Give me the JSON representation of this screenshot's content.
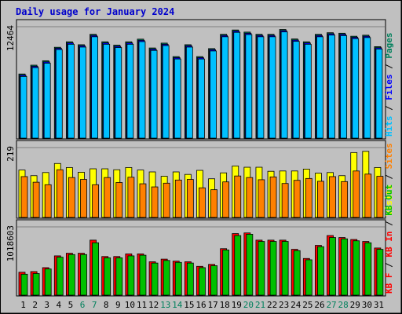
{
  "title": "Daily usage for January 2024",
  "colors": {
    "hits": "#00805c",
    "files": "#0000ff",
    "pages": "#00c0ff",
    "visits": "#ffff00",
    "sites": "#ff8000",
    "kb_in": "#ff0000",
    "kb_out": "#00c000",
    "kb_f": "#ff0000",
    "weekend": "#00805c",
    "weekday": "#000000",
    "title": "#0000cc",
    "bg": "#c0c0c0",
    "plot_bg": "#c0c0c0"
  },
  "chart_data": [
    {
      "type": "bar",
      "panel": "hits-files-pages",
      "ymax_label": "12464",
      "ylim": [
        0,
        12464
      ],
      "right_label": {
        "parts": [
          "Hits",
          " / ",
          "Files",
          " / ",
          "Pages"
        ]
      },
      "categories": [
        "1",
        "2",
        "3",
        "4",
        "5",
        "6",
        "7",
        "8",
        "9",
        "10",
        "11",
        "12",
        "13",
        "14",
        "15",
        "16",
        "17",
        "18",
        "19",
        "20",
        "21",
        "22",
        "23",
        "24",
        "25",
        "26",
        "27",
        "28",
        "29",
        "30",
        "31"
      ],
      "weekend_days": [
        "6",
        "7",
        "13",
        "14",
        "20",
        "21",
        "27",
        "28"
      ],
      "series": [
        {
          "name": "Hits",
          "values": [
            7280,
            8280,
            8780,
            10310,
            10930,
            10600,
            11780,
            10930,
            10550,
            10930,
            11230,
            10230,
            10780,
            9250,
            10600,
            9250,
            10160,
            11780,
            12270,
            12030,
            11780,
            11780,
            12330,
            11250,
            10930,
            11780,
            11960,
            11900,
            11560,
            11680,
            10380
          ]
        },
        {
          "name": "Files",
          "values": [
            7150,
            8150,
            8650,
            10200,
            10800,
            10480,
            11650,
            10800,
            10430,
            10800,
            11100,
            10100,
            10650,
            9130,
            10480,
            9130,
            10040,
            11650,
            12150,
            11900,
            11650,
            11650,
            12200,
            11130,
            10800,
            11650,
            11840,
            11780,
            11440,
            11560,
            10260
          ]
        },
        {
          "name": "Pages",
          "values": [
            7000,
            8000,
            8500,
            10050,
            10650,
            10330,
            11500,
            10650,
            10280,
            10650,
            10950,
            9950,
            10500,
            8980,
            10330,
            8980,
            9890,
            11500,
            12000,
            11750,
            11500,
            11500,
            12050,
            10980,
            10650,
            11500,
            11690,
            11630,
            11290,
            11410,
            10110
          ]
        }
      ]
    },
    {
      "type": "bar",
      "panel": "visits-sites",
      "ymax_label": "219",
      "ylim": [
        0,
        219
      ],
      "right_label": {
        "parts": [
          "Visits",
          " / ",
          "Sites"
        ]
      },
      "categories": [
        "1",
        "2",
        "3",
        "4",
        "5",
        "6",
        "7",
        "8",
        "9",
        "10",
        "11",
        "12",
        "13",
        "14",
        "15",
        "16",
        "17",
        "18",
        "19",
        "20",
        "21",
        "22",
        "23",
        "24",
        "25",
        "26",
        "27",
        "28",
        "29",
        "30",
        "31"
      ],
      "series": [
        {
          "name": "Visits",
          "values": [
            152,
            134,
            144,
            173,
            160,
            145,
            156,
            156,
            153,
            160,
            152,
            146,
            132,
            146,
            138,
            151,
            124,
            143,
            165,
            161,
            161,
            148,
            149,
            149,
            155,
            142,
            144,
            134,
            208,
            212,
            160
          ]
        },
        {
          "name": "Sites",
          "values": [
            131,
            113,
            105,
            153,
            128,
            122,
            105,
            128,
            112,
            129,
            108,
            98,
            110,
            120,
            122,
            95,
            89,
            114,
            133,
            128,
            121,
            130,
            109,
            119,
            125,
            116,
            131,
            115,
            149,
            139,
            132
          ]
        }
      ]
    },
    {
      "type": "bar",
      "panel": "kbytes",
      "ymax_label": "1018603",
      "ylim": [
        0,
        1018603
      ],
      "right_label": {
        "parts": [
          "KB F",
          " / ",
          "KB In",
          " / ",
          "KB Out"
        ]
      },
      "categories": [
        "1",
        "2",
        "3",
        "4",
        "5",
        "6",
        "7",
        "8",
        "9",
        "10",
        "11",
        "12",
        "13",
        "14",
        "15",
        "16",
        "17",
        "18",
        "19",
        "20",
        "21",
        "22",
        "23",
        "24",
        "25",
        "26",
        "27",
        "28",
        "29",
        "30",
        "31"
      ],
      "series": [
        {
          "name": "KB F",
          "values": [
            350000,
            360000,
            420000,
            600000,
            640000,
            640000,
            840000,
            590000,
            590000,
            630000,
            630000,
            510000,
            550000,
            520000,
            510000,
            440000,
            470000,
            710000,
            940000,
            950000,
            840000,
            840000,
            840000,
            700000,
            560000,
            760000,
            910000,
            880000,
            850000,
            820000,
            720000
          ]
        },
        {
          "name": "KB Out",
          "values": [
            320000,
            330000,
            400000,
            580000,
            620000,
            620000,
            800000,
            570000,
            570000,
            600000,
            610000,
            490000,
            530000,
            500000,
            490000,
            420000,
            450000,
            690000,
            910000,
            930000,
            820000,
            820000,
            820000,
            680000,
            540000,
            740000,
            880000,
            860000,
            830000,
            800000,
            700000
          ]
        }
      ]
    }
  ]
}
